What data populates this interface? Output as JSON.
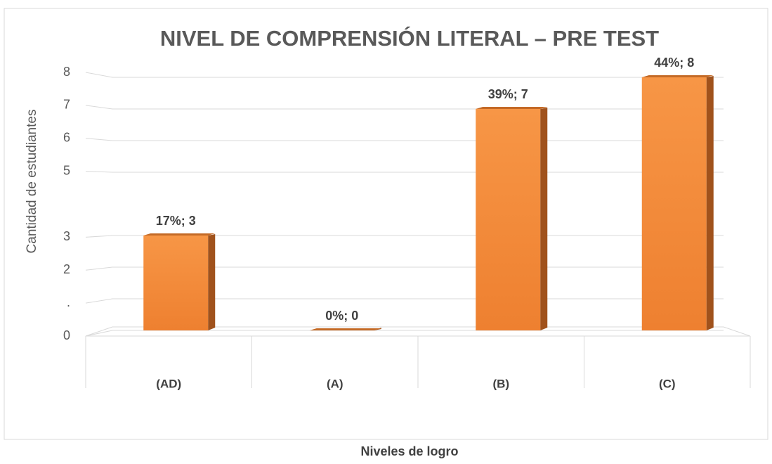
{
  "chart_data": {
    "type": "bar3d",
    "title": "NIVEL DE COMPRENSIÓN LITERAL – PRE TEST",
    "x_label": "Niveles de logro",
    "y_label": "Cantidad de estudiantes",
    "categories": [
      "(AD)",
      "(A)",
      "(B)",
      "(C)"
    ],
    "values": [
      3,
      0,
      7,
      8
    ],
    "value_labels": [
      "17%; 3",
      "0%; 0",
      "39%; 7",
      "44%; 8"
    ],
    "color": "#f38b3a",
    "ylim": [
      0,
      8
    ],
    "yticks": [
      0,
      {
        "value": 1,
        "label": "."
      },
      2,
      3,
      5,
      6,
      7,
      8
    ],
    "grid": true
  }
}
